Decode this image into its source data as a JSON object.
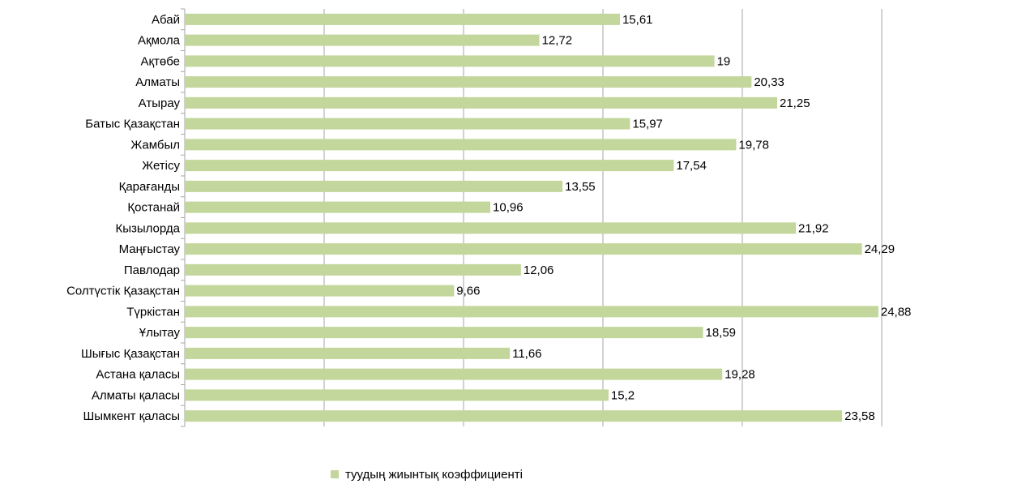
{
  "chart_data": {
    "type": "bar",
    "orientation": "horizontal",
    "categories": [
      "Абай",
      "Ақмола",
      "Ақтөбе",
      "Алматы",
      "Атырау",
      "Батыс Қазақстан",
      "Жамбыл",
      "Жетісу",
      "Қарағанды",
      "Қостанай",
      "Кызылорда",
      "Маңғыстау",
      "Павлодар",
      "Солтүстік Қазақстан",
      "Түркістан",
      "Ұлытау",
      "Шығыс  Қазақстан",
      "Астана қаласы",
      "Алматы қаласы",
      "Шымкент қаласы"
    ],
    "series": [
      {
        "name": "туудың жиынтық коэффициенті",
        "color": "#c3d69b",
        "values": [
          15.61,
          12.72,
          19,
          20.33,
          21.25,
          15.97,
          19.78,
          17.54,
          13.55,
          10.96,
          21.92,
          24.29,
          12.06,
          9.66,
          24.88,
          18.59,
          11.66,
          19.28,
          15.2,
          23.58
        ],
        "value_labels": [
          "15,61",
          "12,72",
          "19",
          "20,33",
          "21,25",
          "15,97",
          "19,78",
          "17,54",
          "13,55",
          "10,96",
          "21,92",
          "24,29",
          "12,06",
          "9,66",
          "24,88",
          "18,59",
          "11,66",
          "19,28",
          "15,2",
          "23,58"
        ]
      }
    ],
    "xlim": [
      0,
      25
    ],
    "xticks": [
      0,
      5,
      10,
      15,
      20,
      25
    ],
    "grid": true,
    "legend": "bottom"
  }
}
